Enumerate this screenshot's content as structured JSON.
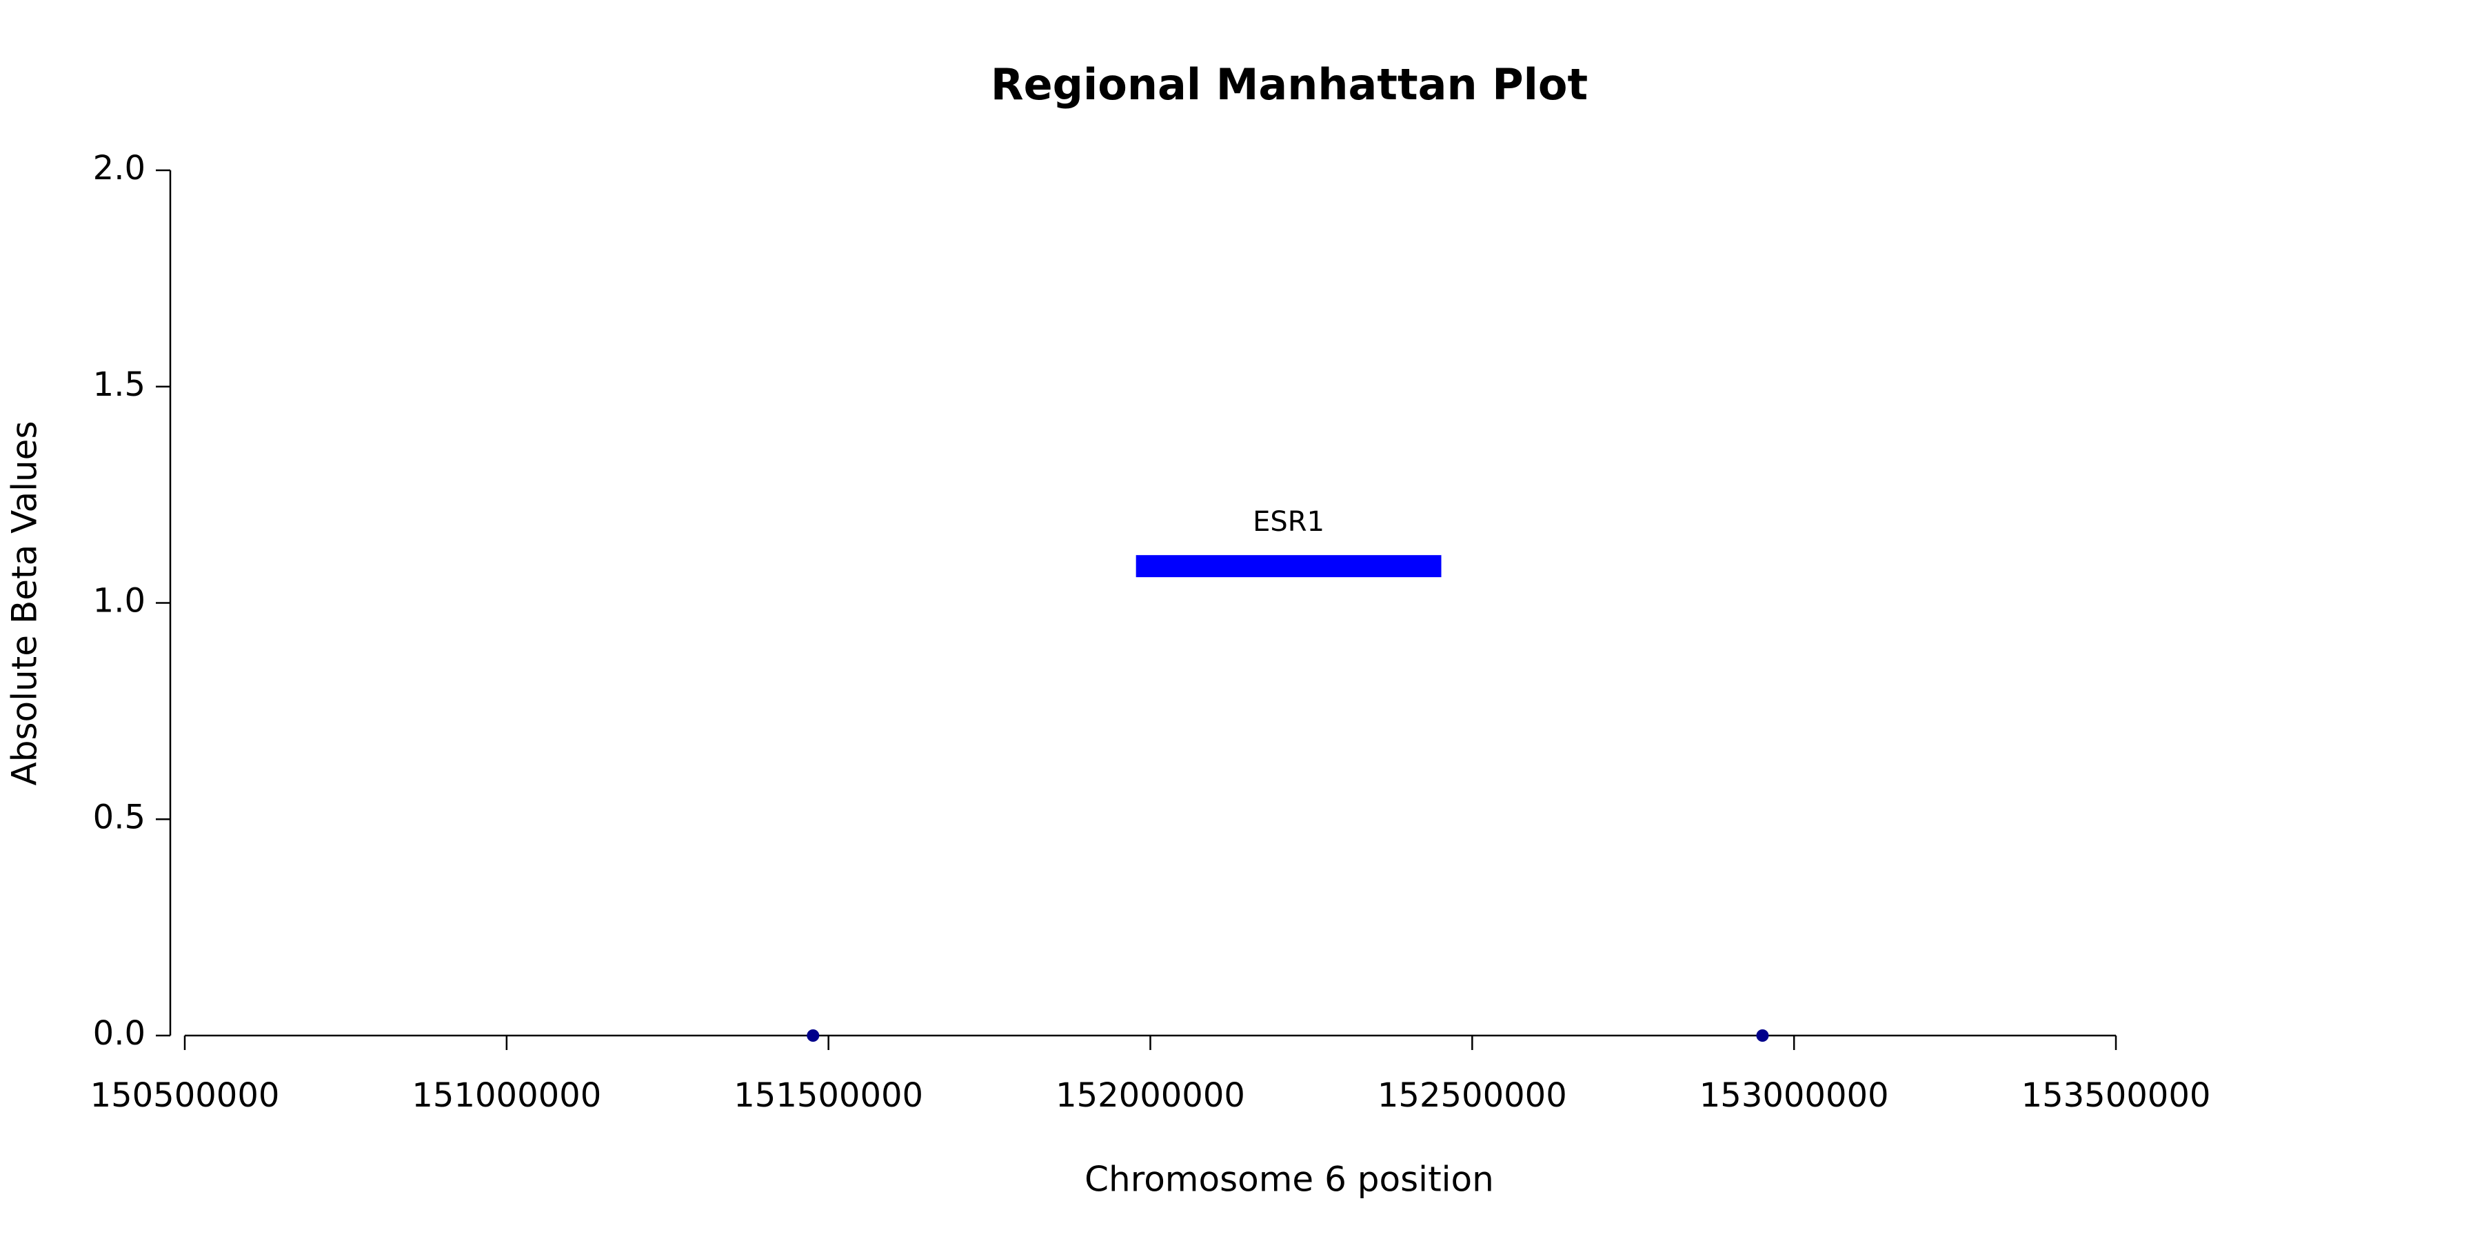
{
  "chart_data": {
    "type": "scatter",
    "title": "Regional Manhattan Plot",
    "x_label": "Chromosome 6 position",
    "y_label": "Absolute Beta Values",
    "x": [
      151476000,
      152951000
    ],
    "values": [
      0,
      0
    ],
    "color": "#00008b",
    "genes": [
      {
        "name": "ESR1",
        "start": 151977700,
        "end": 152452000,
        "y": 1.085,
        "color": "#0000ff"
      }
    ],
    "xlim": [
      150500000,
      153500000
    ],
    "xticks": [
      150500000,
      151000000,
      151500000,
      152000000,
      152500000,
      153000000,
      153500000
    ],
    "ylim": [
      0,
      2
    ],
    "yticks": [
      {
        "value": 0,
        "label": "0.0"
      },
      0.5,
      {
        "value": 1,
        "label": "1.0"
      },
      1.5,
      {
        "value": 2,
        "label": "2.0"
      }
    ]
  }
}
